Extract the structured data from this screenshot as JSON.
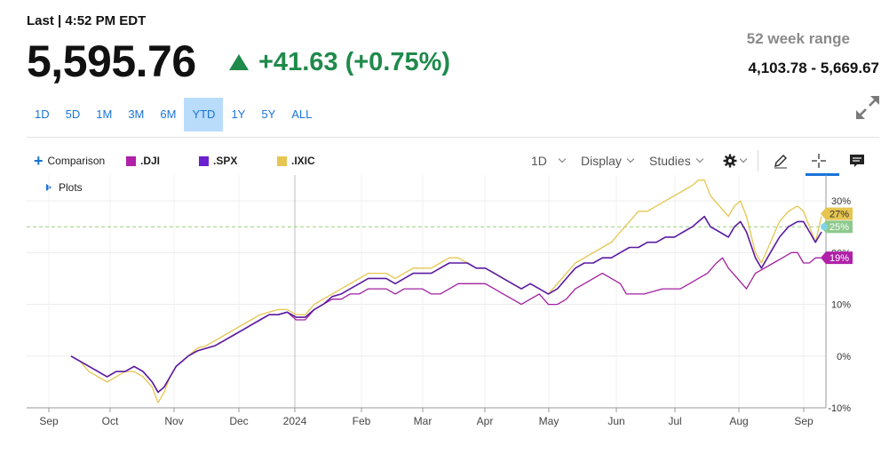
{
  "quote": {
    "last_label": "Last | 4:52 PM EDT",
    "price": "5,595.76",
    "change": "+41.63 (+0.75%)",
    "up_color": "#1f8a4c",
    "range_label": "52 week range",
    "range_value": "4,103.78 - 5,669.67"
  },
  "timeframes": [
    "1D",
    "5D",
    "1M",
    "3M",
    "6M",
    "YTD",
    "1Y",
    "5Y",
    "ALL"
  ],
  "active_timeframe": "YTD",
  "toolbar": {
    "comparison": "Comparison",
    "interval": "1D",
    "display": "Display",
    "studies": "Studies",
    "plots": "Plots"
  },
  "chart_data": {
    "type": "line",
    "x_ticks": [
      "Sep",
      "Oct",
      "Nov",
      "Dec",
      "2024",
      "Feb",
      "Mar",
      "Apr",
      "May",
      "Jun",
      "Jul",
      "Aug",
      "Sep"
    ],
    "y_ticks": [
      "30%",
      "20%",
      "10%",
      "0%",
      "-10%"
    ],
    "ylim": [
      -10,
      35
    ],
    "x_index_range": [
      0,
      250
    ],
    "grid": true,
    "reference_line_pct": 25,
    "series": [
      {
        "name": ".DJI",
        "color": "#a020a0",
        "end_label": "19%",
        "points": [
          [
            0,
            0
          ],
          [
            3,
            -1
          ],
          [
            6,
            -2
          ],
          [
            9,
            -3
          ],
          [
            12,
            -4
          ],
          [
            15,
            -3
          ],
          [
            18,
            -3
          ],
          [
            21,
            -2
          ],
          [
            24,
            -3
          ],
          [
            27,
            -5
          ],
          [
            29,
            -7
          ],
          [
            31,
            -6
          ],
          [
            33,
            -4
          ],
          [
            35,
            -2
          ],
          [
            37,
            -1
          ],
          [
            39,
            0
          ],
          [
            42,
            1
          ],
          [
            45,
            1.5
          ],
          [
            48,
            2
          ],
          [
            51,
            3
          ],
          [
            54,
            4
          ],
          [
            57,
            5
          ],
          [
            60,
            6
          ],
          [
            63,
            7
          ],
          [
            66,
            8
          ],
          [
            69,
            8
          ],
          [
            72,
            8.5
          ],
          [
            75,
            7
          ],
          [
            78,
            7
          ],
          [
            81,
            9
          ],
          [
            84,
            10
          ],
          [
            87,
            11
          ],
          [
            90,
            11
          ],
          [
            93,
            12
          ],
          [
            96,
            12
          ],
          [
            99,
            13
          ],
          [
            102,
            13
          ],
          [
            105,
            13
          ],
          [
            108,
            12
          ],
          [
            111,
            13
          ],
          [
            114,
            13
          ],
          [
            117,
            13
          ],
          [
            120,
            12
          ],
          [
            123,
            12
          ],
          [
            126,
            13
          ],
          [
            129,
            14
          ],
          [
            132,
            14
          ],
          [
            135,
            14
          ],
          [
            138,
            14
          ],
          [
            141,
            13
          ],
          [
            144,
            12
          ],
          [
            147,
            11
          ],
          [
            150,
            10
          ],
          [
            153,
            11
          ],
          [
            156,
            12
          ],
          [
            159,
            10
          ],
          [
            162,
            10
          ],
          [
            165,
            11
          ],
          [
            168,
            13
          ],
          [
            171,
            14
          ],
          [
            174,
            15
          ],
          [
            177,
            16
          ],
          [
            180,
            15
          ],
          [
            183,
            14
          ],
          [
            185,
            12
          ],
          [
            188,
            12
          ],
          [
            191,
            12
          ],
          [
            194,
            12.5
          ],
          [
            197,
            13
          ],
          [
            200,
            13
          ],
          [
            203,
            13
          ],
          [
            206,
            14
          ],
          [
            209,
            15
          ],
          [
            212,
            16
          ],
          [
            215,
            18
          ],
          [
            217,
            19
          ],
          [
            219,
            17
          ],
          [
            222,
            15
          ],
          [
            225,
            13
          ],
          [
            228,
            16
          ],
          [
            231,
            17
          ],
          [
            234,
            18
          ],
          [
            237,
            19
          ],
          [
            240,
            20
          ],
          [
            242,
            20
          ],
          [
            244,
            18
          ],
          [
            246,
            18
          ],
          [
            248,
            19
          ],
          [
            250,
            19
          ]
        ]
      },
      {
        "name": ".SPX",
        "color": "#5a1aa0",
        "end_label": "",
        "points": [
          [
            0,
            0
          ],
          [
            3,
            -1
          ],
          [
            6,
            -2
          ],
          [
            9,
            -3
          ],
          [
            12,
            -4
          ],
          [
            15,
            -3
          ],
          [
            18,
            -3
          ],
          [
            21,
            -2
          ],
          [
            24,
            -3
          ],
          [
            27,
            -5
          ],
          [
            29,
            -7
          ],
          [
            31,
            -6
          ],
          [
            33,
            -4
          ],
          [
            35,
            -2
          ],
          [
            37,
            -1
          ],
          [
            39,
            0
          ],
          [
            42,
            1
          ],
          [
            45,
            1.5
          ],
          [
            48,
            2
          ],
          [
            51,
            3
          ],
          [
            54,
            4
          ],
          [
            57,
            5
          ],
          [
            60,
            6
          ],
          [
            63,
            7
          ],
          [
            66,
            8
          ],
          [
            69,
            8
          ],
          [
            72,
            8.5
          ],
          [
            75,
            7.5
          ],
          [
            78,
            7.5
          ],
          [
            81,
            9
          ],
          [
            84,
            10
          ],
          [
            87,
            11.5
          ],
          [
            90,
            12
          ],
          [
            93,
            13
          ],
          [
            96,
            14
          ],
          [
            99,
            15
          ],
          [
            102,
            15
          ],
          [
            105,
            15
          ],
          [
            108,
            14
          ],
          [
            111,
            15
          ],
          [
            114,
            16
          ],
          [
            117,
            16
          ],
          [
            120,
            16
          ],
          [
            123,
            17
          ],
          [
            126,
            18
          ],
          [
            129,
            18
          ],
          [
            132,
            18
          ],
          [
            135,
            17
          ],
          [
            138,
            17
          ],
          [
            141,
            16
          ],
          [
            144,
            15
          ],
          [
            147,
            14
          ],
          [
            150,
            13
          ],
          [
            153,
            14
          ],
          [
            156,
            13
          ],
          [
            159,
            12
          ],
          [
            162,
            13
          ],
          [
            165,
            15
          ],
          [
            168,
            17
          ],
          [
            171,
            18
          ],
          [
            174,
            18
          ],
          [
            177,
            19
          ],
          [
            180,
            19
          ],
          [
            183,
            20
          ],
          [
            186,
            21
          ],
          [
            189,
            21
          ],
          [
            192,
            22
          ],
          [
            195,
            22
          ],
          [
            198,
            23
          ],
          [
            201,
            23
          ],
          [
            204,
            24
          ],
          [
            207,
            25
          ],
          [
            209,
            26
          ],
          [
            211,
            27
          ],
          [
            213,
            25
          ],
          [
            216,
            24
          ],
          [
            219,
            23
          ],
          [
            221,
            25
          ],
          [
            223,
            26
          ],
          [
            225,
            24
          ],
          [
            228,
            19
          ],
          [
            230,
            17
          ],
          [
            233,
            20
          ],
          [
            236,
            23
          ],
          [
            239,
            25
          ],
          [
            242,
            26
          ],
          [
            244,
            26
          ],
          [
            246,
            24
          ],
          [
            248,
            22
          ],
          [
            250,
            24
          ]
        ]
      },
      {
        "name": ".IXIC",
        "color": "#e6c550",
        "end_label": "27%",
        "points": [
          [
            0,
            0
          ],
          [
            3,
            -1
          ],
          [
            6,
            -3
          ],
          [
            9,
            -4
          ],
          [
            12,
            -5
          ],
          [
            15,
            -4
          ],
          [
            18,
            -3
          ],
          [
            21,
            -3
          ],
          [
            24,
            -4
          ],
          [
            27,
            -6
          ],
          [
            29,
            -9
          ],
          [
            31,
            -7
          ],
          [
            33,
            -4
          ],
          [
            35,
            -2
          ],
          [
            37,
            -1
          ],
          [
            39,
            0
          ],
          [
            42,
            1.5
          ],
          [
            45,
            2
          ],
          [
            48,
            3
          ],
          [
            51,
            4
          ],
          [
            54,
            5
          ],
          [
            57,
            6
          ],
          [
            60,
            7
          ],
          [
            63,
            8
          ],
          [
            66,
            8.5
          ],
          [
            69,
            9
          ],
          [
            72,
            9
          ],
          [
            75,
            8
          ],
          [
            78,
            8
          ],
          [
            81,
            10
          ],
          [
            84,
            11
          ],
          [
            87,
            12
          ],
          [
            90,
            13
          ],
          [
            93,
            14
          ],
          [
            96,
            15
          ],
          [
            99,
            16
          ],
          [
            102,
            16
          ],
          [
            105,
            16
          ],
          [
            108,
            15
          ],
          [
            111,
            16
          ],
          [
            114,
            17
          ],
          [
            117,
            17
          ],
          [
            120,
            17
          ],
          [
            123,
            18
          ],
          [
            126,
            19
          ],
          [
            129,
            19
          ],
          [
            132,
            18
          ],
          [
            135,
            17
          ],
          [
            138,
            17
          ],
          [
            141,
            16
          ],
          [
            144,
            15
          ],
          [
            147,
            14
          ],
          [
            150,
            13
          ],
          [
            153,
            14
          ],
          [
            156,
            13
          ],
          [
            159,
            12
          ],
          [
            162,
            14
          ],
          [
            165,
            16
          ],
          [
            168,
            18
          ],
          [
            171,
            19
          ],
          [
            174,
            20
          ],
          [
            177,
            21
          ],
          [
            180,
            22
          ],
          [
            183,
            24
          ],
          [
            186,
            26
          ],
          [
            189,
            28
          ],
          [
            192,
            28
          ],
          [
            195,
            29
          ],
          [
            198,
            30
          ],
          [
            201,
            31
          ],
          [
            204,
            32
          ],
          [
            207,
            33
          ],
          [
            209,
            34
          ],
          [
            211,
            34
          ],
          [
            213,
            31
          ],
          [
            216,
            29
          ],
          [
            219,
            27
          ],
          [
            221,
            29
          ],
          [
            223,
            30
          ],
          [
            225,
            27
          ],
          [
            228,
            20
          ],
          [
            230,
            18
          ],
          [
            233,
            22
          ],
          [
            236,
            26
          ],
          [
            239,
            28
          ],
          [
            242,
            29
          ],
          [
            244,
            28
          ],
          [
            246,
            25
          ],
          [
            248,
            22
          ],
          [
            250,
            27
          ]
        ]
      }
    ],
    "badges": [
      {
        "text": "27%",
        "value": 27.5,
        "color": "#e6c550",
        "text_color": "#333333"
      },
      {
        "text": "25%",
        "value": 25,
        "color": "#8ec98e",
        "text_color": "#ffffff"
      },
      {
        "text": "19%",
        "value": 19,
        "color": "#b020a8",
        "text_color": "#ffffff"
      }
    ]
  }
}
